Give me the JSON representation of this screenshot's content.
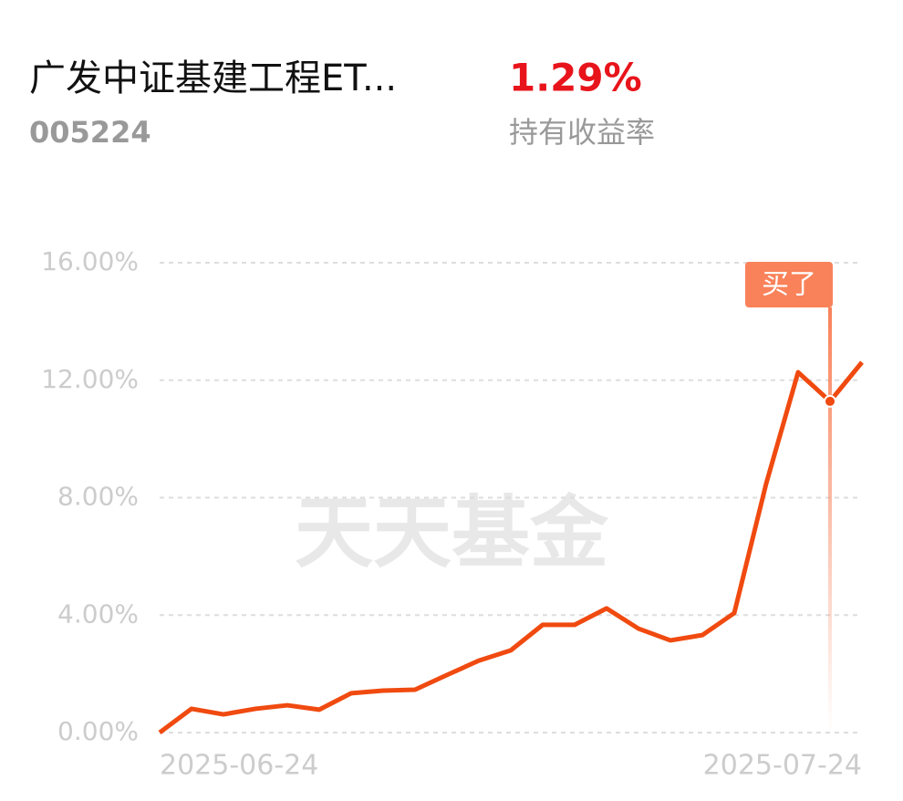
{
  "header": {
    "title": "广发中证基建工程ET...",
    "code": "005224",
    "return": "1.29%",
    "return_label": "持有收益率"
  },
  "chart_data": {
    "type": "line",
    "watermark": "天天基金",
    "categories": [
      "2025-06-24",
      null,
      null,
      null,
      null,
      null,
      null,
      null,
      null,
      null,
      null,
      null,
      null,
      null,
      null,
      null,
      null,
      null,
      null,
      null,
      null,
      null,
      "2025-07-24"
    ],
    "series": [
      {
        "name": "持有收益率",
        "color": "#f04a10",
        "values": [
          0,
          0.81,
          0.62,
          0.81,
          0.93,
          0.78,
          1.34,
          1.43,
          1.46,
          1.96,
          2.45,
          2.8,
          3.67,
          3.67,
          4.23,
          3.54,
          3.14,
          3.32,
          4.07,
          8.48,
          12.27,
          11.28,
          12.61
        ]
      }
    ],
    "ylim": [
      0,
      16
    ],
    "yticks": [
      {
        "value": 0,
        "label": "0.00%"
      },
      {
        "value": 4,
        "label": "4.00%"
      },
      {
        "value": 8,
        "label": "8.00%"
      },
      {
        "value": 12,
        "label": "12.00%"
      },
      {
        "value": 16,
        "label": "16.00%"
      }
    ],
    "grid": true,
    "annotation": {
      "text": "买了",
      "x_index": 21,
      "color": "#f9825a"
    }
  }
}
